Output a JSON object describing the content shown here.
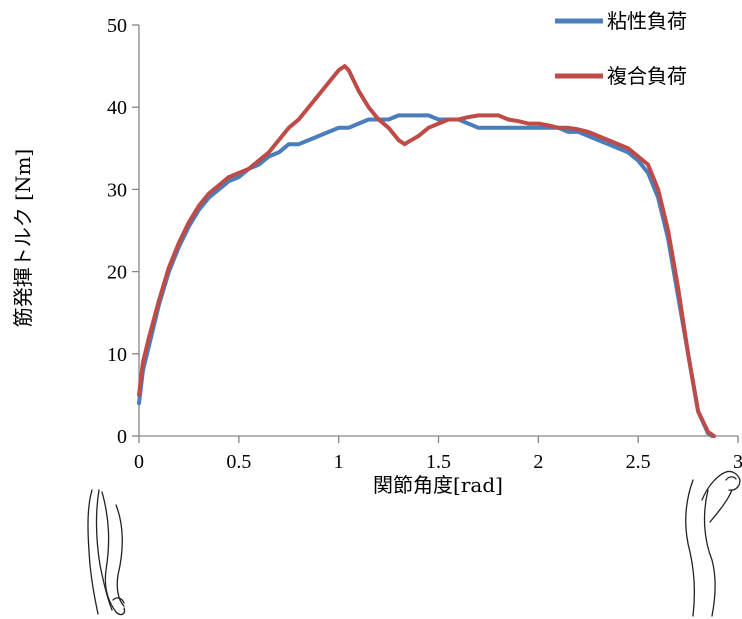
{
  "chart_data": {
    "type": "line",
    "xlabel": "関節角度[rad]",
    "ylabel": "筋発揮トルク [Nm]",
    "xlim": [
      0,
      3
    ],
    "ylim": [
      0,
      50
    ],
    "xticks": [
      0,
      0.5,
      1,
      1.5,
      2,
      2.5,
      3
    ],
    "xtick_labels": [
      "0",
      "0.5",
      "1",
      "1.5",
      "2",
      "2.5",
      "3"
    ],
    "yticks": [
      0,
      10,
      20,
      30,
      40,
      50
    ],
    "ytick_labels": [
      "0",
      "10",
      "20",
      "30",
      "40",
      "50"
    ],
    "grid": false,
    "legend_position": "top-right",
    "series": [
      {
        "name": "粘性負荷",
        "color": "#4a7ebb",
        "x": [
          0.0,
          0.02,
          0.05,
          0.1,
          0.15,
          0.2,
          0.25,
          0.3,
          0.35,
          0.4,
          0.45,
          0.5,
          0.55,
          0.6,
          0.65,
          0.7,
          0.75,
          0.8,
          0.85,
          0.9,
          0.95,
          1.0,
          1.05,
          1.1,
          1.15,
          1.2,
          1.25,
          1.3,
          1.35,
          1.4,
          1.45,
          1.5,
          1.55,
          1.6,
          1.65,
          1.7,
          1.75,
          1.8,
          1.85,
          1.9,
          1.95,
          2.0,
          2.05,
          2.1,
          2.15,
          2.2,
          2.25,
          2.3,
          2.35,
          2.4,
          2.45,
          2.5,
          2.55,
          2.6,
          2.65,
          2.7,
          2.75,
          2.8,
          2.85,
          2.87
        ],
        "y": [
          4,
          8,
          11,
          16,
          20,
          23,
          25.5,
          27.5,
          29,
          30,
          31,
          31.5,
          32.5,
          33,
          34,
          34.5,
          35.5,
          35.5,
          36,
          36.5,
          37,
          37.5,
          37.5,
          38,
          38.5,
          38.5,
          38.5,
          39,
          39,
          39,
          39,
          38.5,
          38.5,
          38.5,
          38,
          37.5,
          37.5,
          37.5,
          37.5,
          37.5,
          37.5,
          37.5,
          37.5,
          37.5,
          37,
          37,
          36.5,
          36,
          35.5,
          35,
          34.5,
          33.5,
          32,
          29,
          24,
          17,
          10,
          3,
          0.3,
          0
        ]
      },
      {
        "name": "複合負荷",
        "color": "#be4b48",
        "x": [
          0.0,
          0.02,
          0.05,
          0.1,
          0.15,
          0.2,
          0.25,
          0.3,
          0.35,
          0.4,
          0.45,
          0.5,
          0.55,
          0.6,
          0.65,
          0.7,
          0.75,
          0.8,
          0.85,
          0.9,
          0.95,
          1.0,
          1.03,
          1.05,
          1.1,
          1.15,
          1.2,
          1.25,
          1.3,
          1.33,
          1.35,
          1.4,
          1.45,
          1.5,
          1.55,
          1.6,
          1.65,
          1.7,
          1.75,
          1.8,
          1.85,
          1.9,
          1.95,
          2.0,
          2.05,
          2.1,
          2.15,
          2.2,
          2.25,
          2.3,
          2.35,
          2.4,
          2.45,
          2.5,
          2.55,
          2.6,
          2.65,
          2.7,
          2.75,
          2.8,
          2.85,
          2.88
        ],
        "y": [
          5,
          9,
          12,
          16.5,
          20.5,
          23.5,
          26,
          28,
          29.5,
          30.5,
          31.5,
          32,
          32.5,
          33.5,
          34.5,
          36,
          37.5,
          38.5,
          40,
          41.5,
          43,
          44.5,
          45,
          44.5,
          42,
          40,
          38.5,
          37.5,
          36,
          35.5,
          35.8,
          36.5,
          37.5,
          38,
          38.5,
          38.5,
          38.8,
          39,
          39,
          39,
          38.5,
          38.3,
          38,
          38,
          37.8,
          37.5,
          37.5,
          37.3,
          37,
          36.5,
          36,
          35.5,
          35,
          34,
          33,
          30,
          25,
          18,
          10,
          3,
          0.5,
          0
        ]
      }
    ]
  },
  "legend": {
    "items": [
      {
        "label": "粘性負荷",
        "color": "#4a7ebb"
      },
      {
        "label": "複合負荷",
        "color": "#be4b48"
      }
    ]
  },
  "illustrations": {
    "left": "extended-arm-icon",
    "right": "flexed-arm-icon"
  }
}
